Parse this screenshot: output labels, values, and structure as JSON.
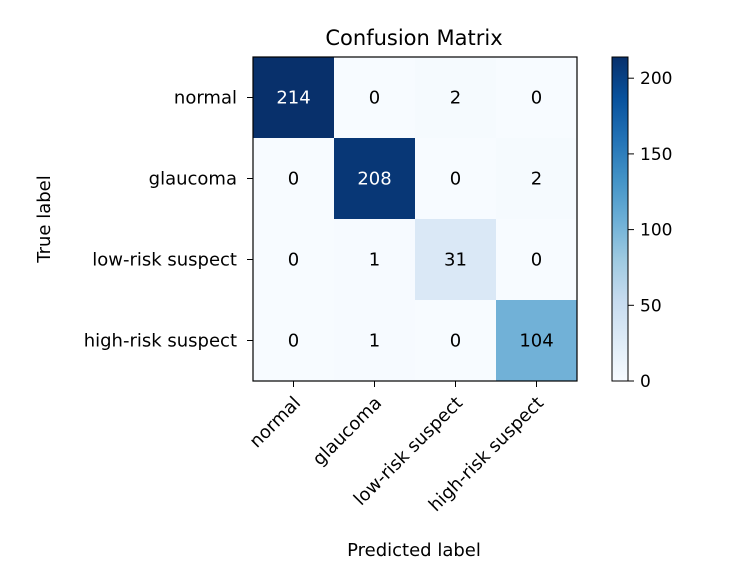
{
  "chart_data": {
    "type": "heatmap",
    "title": "Confusion Matrix",
    "xlabel": "Predicted label",
    "ylabel": "True label",
    "x_categories": [
      "normal",
      "glaucoma",
      "low-risk suspect",
      "high-risk suspect"
    ],
    "y_categories": [
      "normal",
      "glaucoma",
      "low-risk suspect",
      "high-risk suspect"
    ],
    "values": [
      [
        214,
        0,
        2,
        0
      ],
      [
        0,
        208,
        0,
        2
      ],
      [
        0,
        1,
        31,
        0
      ],
      [
        0,
        1,
        0,
        104
      ]
    ],
    "colormap": "Blues",
    "colorbar": {
      "range": [
        0,
        214
      ],
      "ticks": [
        0,
        50,
        100,
        150,
        200
      ]
    },
    "grid": false
  }
}
